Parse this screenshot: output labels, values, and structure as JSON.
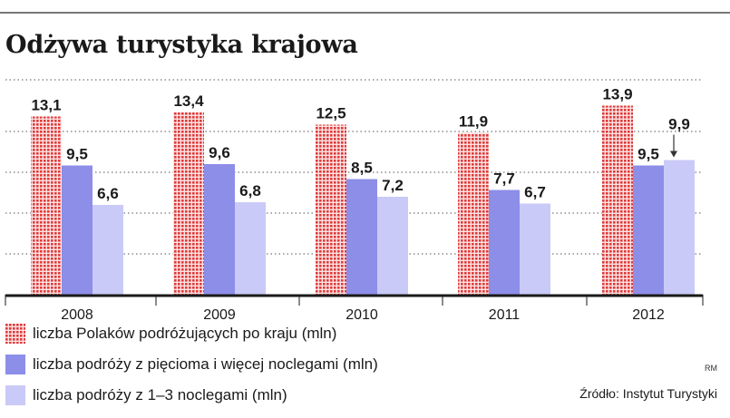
{
  "title": "Odżywa turystyka krajowa",
  "colors": {
    "series1": "#e03a3a",
    "series2": "#8d8ee8",
    "series3": "#c9caf7"
  },
  "legend": [
    {
      "label": "liczba Polaków podróżujących po kraju (mln)",
      "pattern": "red-dots"
    },
    {
      "label": "liczba podróży z pięcioma i więcej noclegami (mln)",
      "pattern": "solid-purple"
    },
    {
      "label": "liczba podróży z 1–3 noclegami (mln)",
      "pattern": "solid-lavender"
    }
  ],
  "source": "Źródło: Instytut Turystyki",
  "author": "RM",
  "chart_data": {
    "type": "bar",
    "categories": [
      "2008",
      "2009",
      "2010",
      "2011",
      "2012"
    ],
    "series": [
      {
        "name": "liczba Polaków podróżujących po kraju (mln)",
        "values": [
          13.1,
          13.4,
          12.5,
          11.9,
          13.9
        ],
        "labels": [
          "13,1",
          "13,4",
          "12,5",
          "11,9",
          "13,9"
        ]
      },
      {
        "name": "liczba podróży z pięcioma i więcej noclegami (mln)",
        "values": [
          9.5,
          9.6,
          8.5,
          7.7,
          9.5
        ],
        "labels": [
          "9,5",
          "9,6",
          "8,5",
          "7,7",
          "9,5"
        ]
      },
      {
        "name": "liczba podróży z 1–3 noclegami (mln)",
        "values": [
          6.6,
          6.8,
          7.2,
          6.7,
          9.9
        ],
        "labels": [
          "6,6",
          "6,8",
          "7,2",
          "6,7",
          "9,9"
        ]
      }
    ],
    "ylim": [
      0,
      14
    ],
    "grid": true,
    "legend_position": "bottom-left",
    "annotations": [
      {
        "type": "arrow",
        "category": "2012",
        "series": 2
      }
    ]
  }
}
